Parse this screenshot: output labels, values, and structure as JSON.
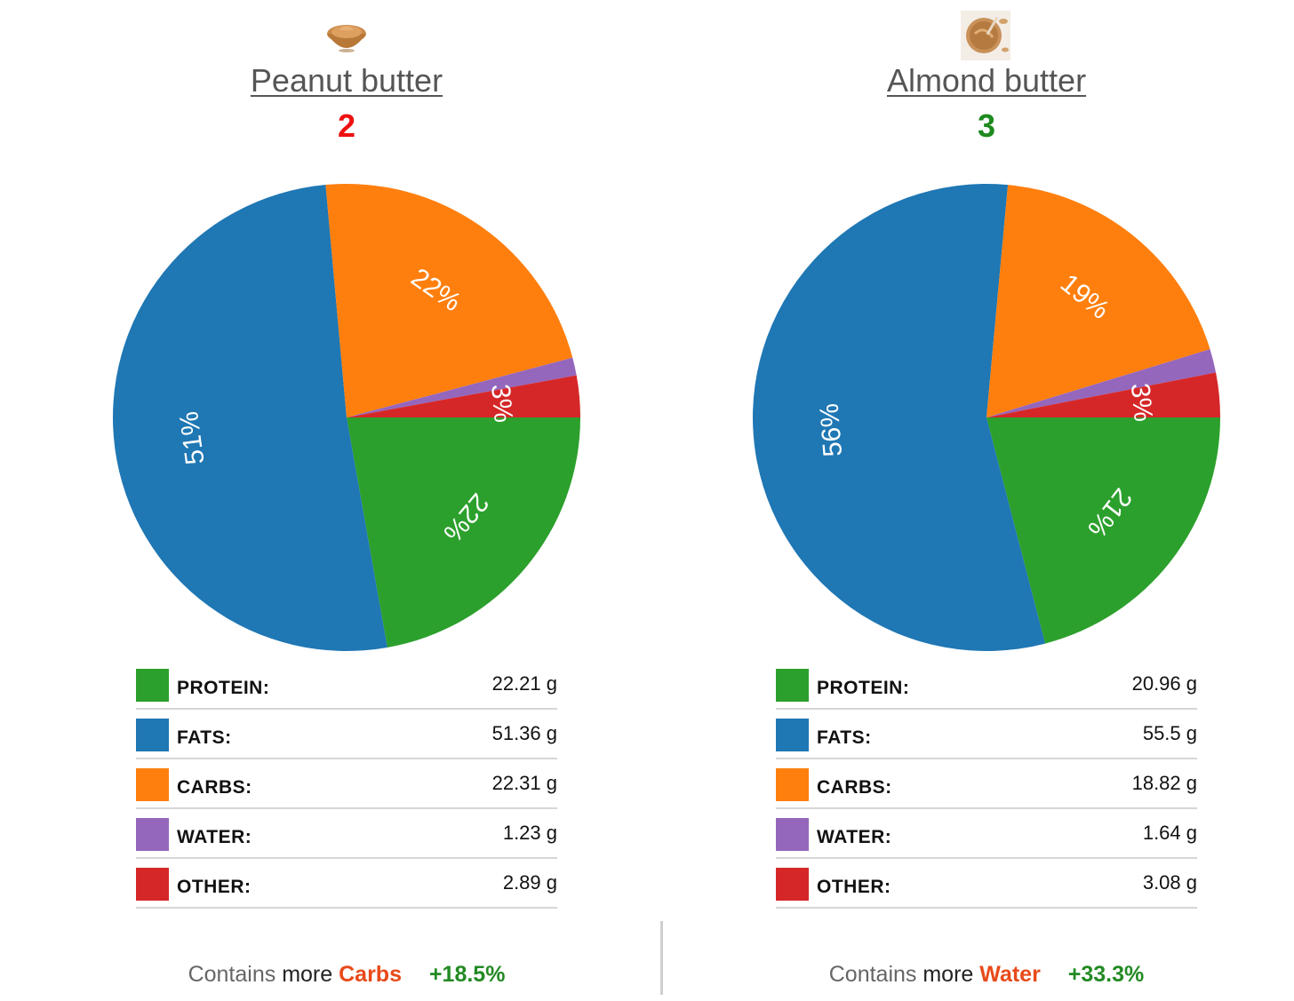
{
  "foods": [
    {
      "name": "Peanut butter",
      "icon": "peanut-butter-bowl-icon",
      "score": "2",
      "score_color": "#ee1111",
      "summary": {
        "prefix": "Contains",
        "more": "more",
        "nutrient": "Carbs",
        "diff": "+18.5%"
      }
    },
    {
      "name": "Almond butter",
      "icon": "almond-butter-jar-icon",
      "score": "3",
      "score_color": "#1e8a1e",
      "summary": {
        "prefix": "Contains",
        "more": "more",
        "nutrient": "Water",
        "diff": "+33.3%"
      }
    }
  ],
  "colors": {
    "protein": "#2ca02c",
    "fats": "#1f77b4",
    "carbs": "#ff7f0e",
    "water": "#9467bd",
    "other": "#d62728"
  },
  "chart_data": [
    {
      "type": "pie",
      "title": "Peanut butter",
      "slices": [
        {
          "label": "PROTEIN:",
          "value": 22.21,
          "display": "22.21 g",
          "pct_label": "22%",
          "color": "#2ca02c"
        },
        {
          "label": "FATS:",
          "value": 51.36,
          "display": "51.36 g",
          "pct_label": "51%",
          "color": "#1f77b4"
        },
        {
          "label": "CARBS:",
          "value": 22.31,
          "display": "22.31 g",
          "pct_label": "22%",
          "color": "#ff7f0e"
        },
        {
          "label": "WATER:",
          "value": 1.23,
          "display": "1.23 g",
          "pct_label": "",
          "color": "#9467bd"
        },
        {
          "label": "OTHER:",
          "value": 2.89,
          "display": "2.89 g",
          "pct_label": "3%",
          "color": "#d62728"
        }
      ]
    },
    {
      "type": "pie",
      "title": "Almond butter",
      "slices": [
        {
          "label": "PROTEIN:",
          "value": 20.96,
          "display": "20.96 g",
          "pct_label": "21%",
          "color": "#2ca02c"
        },
        {
          "label": "FATS:",
          "value": 55.5,
          "display": "55.5 g",
          "pct_label": "56%",
          "color": "#1f77b4"
        },
        {
          "label": "CARBS:",
          "value": 18.82,
          "display": "18.82 g",
          "pct_label": "19%",
          "color": "#ff7f0e"
        },
        {
          "label": "WATER:",
          "value": 1.64,
          "display": "1.64 g",
          "pct_label": "",
          "color": "#9467bd"
        },
        {
          "label": "OTHER:",
          "value": 3.08,
          "display": "3.08 g",
          "pct_label": "3%",
          "color": "#d62728"
        }
      ]
    }
  ]
}
